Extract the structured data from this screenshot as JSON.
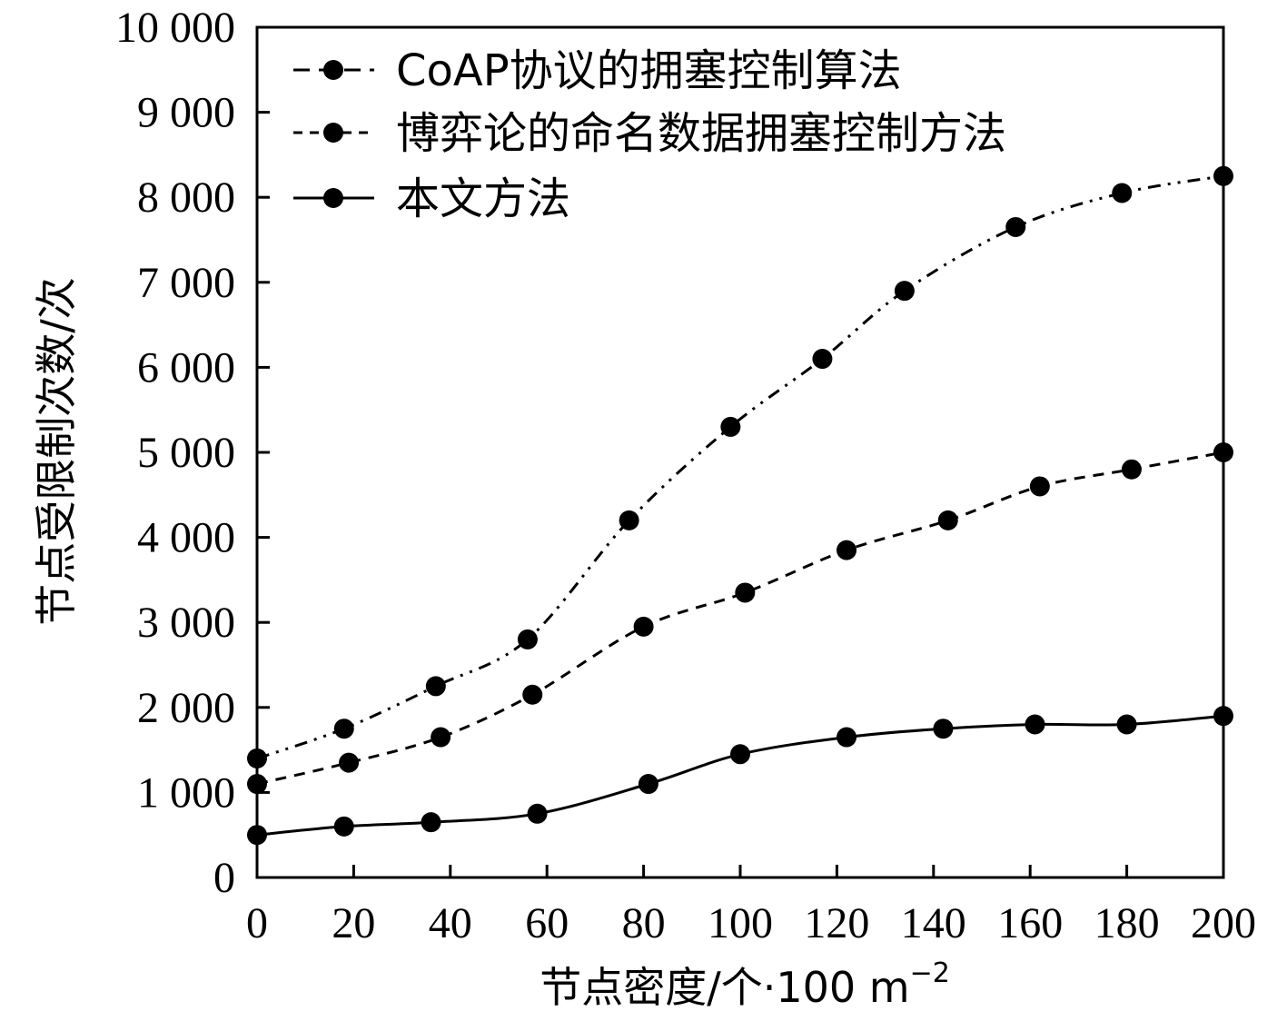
{
  "chart_data": {
    "type": "line",
    "xlabel": "节点密度/个·100 m",
    "xlabel_sup": "−2",
    "ylabel": "节点受限制次数/次",
    "xlim": [
      0,
      200
    ],
    "ylim": [
      0,
      10000
    ],
    "x_ticks": [
      0,
      20,
      40,
      60,
      80,
      100,
      120,
      140,
      160,
      180,
      200
    ],
    "x_tick_labels": [
      "0",
      "20",
      "40",
      "60",
      "80",
      "100",
      "120",
      "140",
      "160",
      "180",
      "200"
    ],
    "y_ticks": [
      0,
      1000,
      2000,
      3000,
      4000,
      5000,
      6000,
      7000,
      8000,
      9000,
      10000
    ],
    "y_tick_labels": [
      "0",
      "1 000",
      "2 000",
      "3 000",
      "4 000",
      "5 000",
      "6 000",
      "7 000",
      "8 000",
      "9 000",
      "10 000"
    ],
    "grid": false,
    "legend_position": "top-left",
    "series": [
      {
        "name": "CoAP协议的拥塞控制算法",
        "line_style": "dash-dot-dot",
        "marker": "circle",
        "x": [
          0,
          18,
          37,
          56,
          77,
          98,
          117,
          134,
          157,
          179,
          200
        ],
        "y": [
          1400,
          1750,
          2250,
          2800,
          4200,
          5300,
          6100,
          6900,
          7650,
          8050,
          8250
        ]
      },
      {
        "name": "博弈论的命名数据拥塞控制方法",
        "line_style": "dashed",
        "marker": "circle",
        "x": [
          0,
          19,
          38,
          57,
          80,
          101,
          122,
          143,
          162,
          181,
          200
        ],
        "y": [
          1100,
          1350,
          1650,
          2150,
          2950,
          3350,
          3850,
          4200,
          4600,
          4800,
          5000
        ]
      },
      {
        "name": "本文方法",
        "line_style": "solid",
        "marker": "circle",
        "x": [
          0,
          18,
          36,
          58,
          81,
          100,
          122,
          142,
          161,
          180,
          200
        ],
        "y": [
          500,
          600,
          650,
          750,
          1100,
          1450,
          1650,
          1750,
          1800,
          1800,
          1900
        ]
      }
    ]
  }
}
